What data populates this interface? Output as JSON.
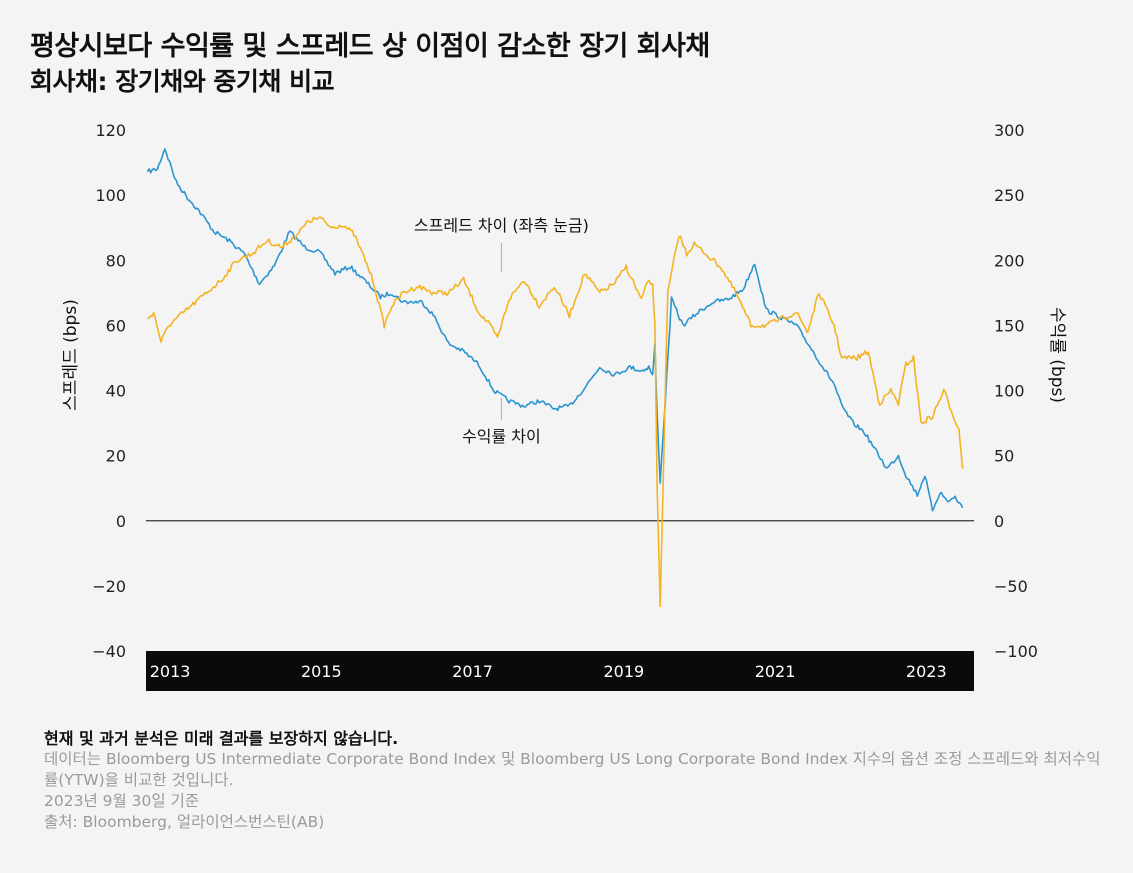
{
  "header": {
    "title": "평상시보다 수익률 및 스프레드 상 이점이 감소한 장기 회사채",
    "subtitle": "회사채: 장기채와 중기채 비교"
  },
  "chart_data": {
    "type": "line",
    "ylabel_left": "스프레드 (bps)",
    "ylabel_right": "수익률 (bps)",
    "left_axis": {
      "min": -40,
      "max": 120,
      "ticks": [
        120,
        100,
        80,
        60,
        40,
        20,
        0,
        -20,
        -40
      ],
      "tick_labels": [
        "120",
        "100",
        "80",
        "60",
        "40",
        "20",
        "0",
        "−20",
        "−40"
      ]
    },
    "right_axis": {
      "min": -100,
      "max": 300,
      "ticks": [
        300,
        250,
        200,
        150,
        100,
        50,
        0,
        -50,
        -100
      ],
      "tick_labels": [
        "300",
        "250",
        "200",
        "150",
        "100",
        "50",
        "0",
        "−50",
        "−100"
      ]
    },
    "x_ticks": [
      2013,
      2015,
      2017,
      2019,
      2021,
      2023
    ],
    "x_tick_labels": [
      "2013",
      "2015",
      "2017",
      "2019",
      "2021",
      "2023"
    ],
    "x_range": [
      2012.8,
      2023.75
    ],
    "zero_line": true,
    "annotations": [
      {
        "text": "스프레드 차이 (좌측 눈금)",
        "series": "spread",
        "x": 2017.5
      },
      {
        "text": "수익률 차이",
        "series": "yield",
        "x": 2017.5
      }
    ],
    "series": [
      {
        "id": "spread",
        "axis": "left",
        "color": "#f5b324",
        "x": [
          2012.82,
          2012.9,
          2013.0,
          2013.1,
          2013.25,
          2013.4,
          2013.6,
          2013.8,
          2014.0,
          2014.2,
          2014.4,
          2014.6,
          2014.8,
          2014.95,
          2015.1,
          2015.25,
          2015.4,
          2015.55,
          2015.7,
          2015.8,
          2015.95,
          2016.05,
          2016.2,
          2016.4,
          2016.6,
          2016.8,
          2017.0,
          2017.2,
          2017.35,
          2017.45,
          2017.6,
          2017.8,
          2018.0,
          2018.2,
          2018.4,
          2018.6,
          2018.8,
          2019.0,
          2019.15,
          2019.35,
          2019.45,
          2019.5,
          2019.53,
          2019.56,
          2019.6,
          2019.7,
          2019.85,
          2019.95,
          2020.05,
          2020.2,
          2020.4,
          2020.6,
          2020.8,
          2021.0,
          2021.2,
          2021.4,
          2021.55,
          2021.7,
          2021.9,
          2022.0,
          2022.2,
          2022.35,
          2022.5,
          2022.65,
          2022.75,
          2022.85,
          2022.95,
          2023.05,
          2023.2,
          2023.35,
          2023.45,
          2023.55,
          2023.6
        ],
        "y": [
          62,
          64,
          55,
          60,
          63,
          66,
          70,
          74,
          80,
          82,
          86,
          84,
          88,
          92,
          93,
          90,
          91,
          88,
          80,
          74,
          60,
          66,
          70,
          72,
          70,
          70,
          74,
          64,
          60,
          56,
          68,
          74,
          66,
          72,
          63,
          76,
          70,
          73,
          78,
          68,
          74,
          72,
          60,
          10,
          -26,
          70,
          88,
          82,
          85,
          82,
          78,
          70,
          60,
          60,
          62,
          64,
          58,
          70,
          60,
          50,
          50,
          52,
          36,
          40,
          36,
          48,
          50,
          30,
          32,
          40,
          34,
          28,
          16
        ]
      },
      {
        "id": "yield",
        "axis": "right",
        "color": "#2c95cf",
        "x": [
          2012.82,
          2012.95,
          2013.05,
          2013.2,
          2013.35,
          2013.5,
          2013.7,
          2013.9,
          2014.1,
          2014.3,
          2014.5,
          2014.7,
          2014.9,
          2015.1,
          2015.3,
          2015.5,
          2015.7,
          2015.9,
          2016.05,
          2016.2,
          2016.45,
          2016.6,
          2016.8,
          2017.0,
          2017.2,
          2017.4,
          2017.6,
          2017.8,
          2018.0,
          2018.2,
          2018.4,
          2018.6,
          2018.8,
          2019.0,
          2019.2,
          2019.35,
          2019.45,
          2019.5,
          2019.53,
          2019.56,
          2019.6,
          2019.75,
          2019.9,
          2020.1,
          2020.3,
          2020.5,
          2020.7,
          2020.85,
          2021.0,
          2021.2,
          2021.4,
          2021.6,
          2021.75,
          2021.9,
          2022.0,
          2022.15,
          2022.3,
          2022.45,
          2022.6,
          2022.75,
          2022.85,
          2023.0,
          2023.1,
          2023.2,
          2023.3,
          2023.4,
          2023.5,
          2023.6
        ],
        "y": [
          268,
          270,
          286,
          260,
          248,
          238,
          222,
          215,
          205,
          182,
          196,
          222,
          210,
          206,
          190,
          195,
          184,
          172,
          175,
          168,
          168,
          158,
          136,
          130,
          120,
          100,
          92,
          88,
          92,
          86,
          88,
          102,
          118,
          112,
          118,
          115,
          118,
          112,
          135,
          80,
          30,
          170,
          150,
          160,
          168,
          170,
          178,
          198,
          162,
          156,
          150,
          132,
          118,
          105,
          88,
          75,
          68,
          54,
          40,
          50,
          35,
          20,
          35,
          8,
          22,
          15,
          18,
          10
        ]
      }
    ]
  },
  "footer": {
    "disclaimer": "현재 및 과거 분석은 미래 결과를 보장하지 않습니다.",
    "note": "데이터는 Bloomberg US Intermediate Corporate Bond Index 및 Bloomberg US Long Corporate Bond Index 지수의 옵션 조정 스프레드와 최저수익률(YTW)을 비교한 것입니다.",
    "date": "2023년 9월 30일 기준",
    "source": "출처: Bloomberg, 얼라이언스번스틴(AB)"
  }
}
